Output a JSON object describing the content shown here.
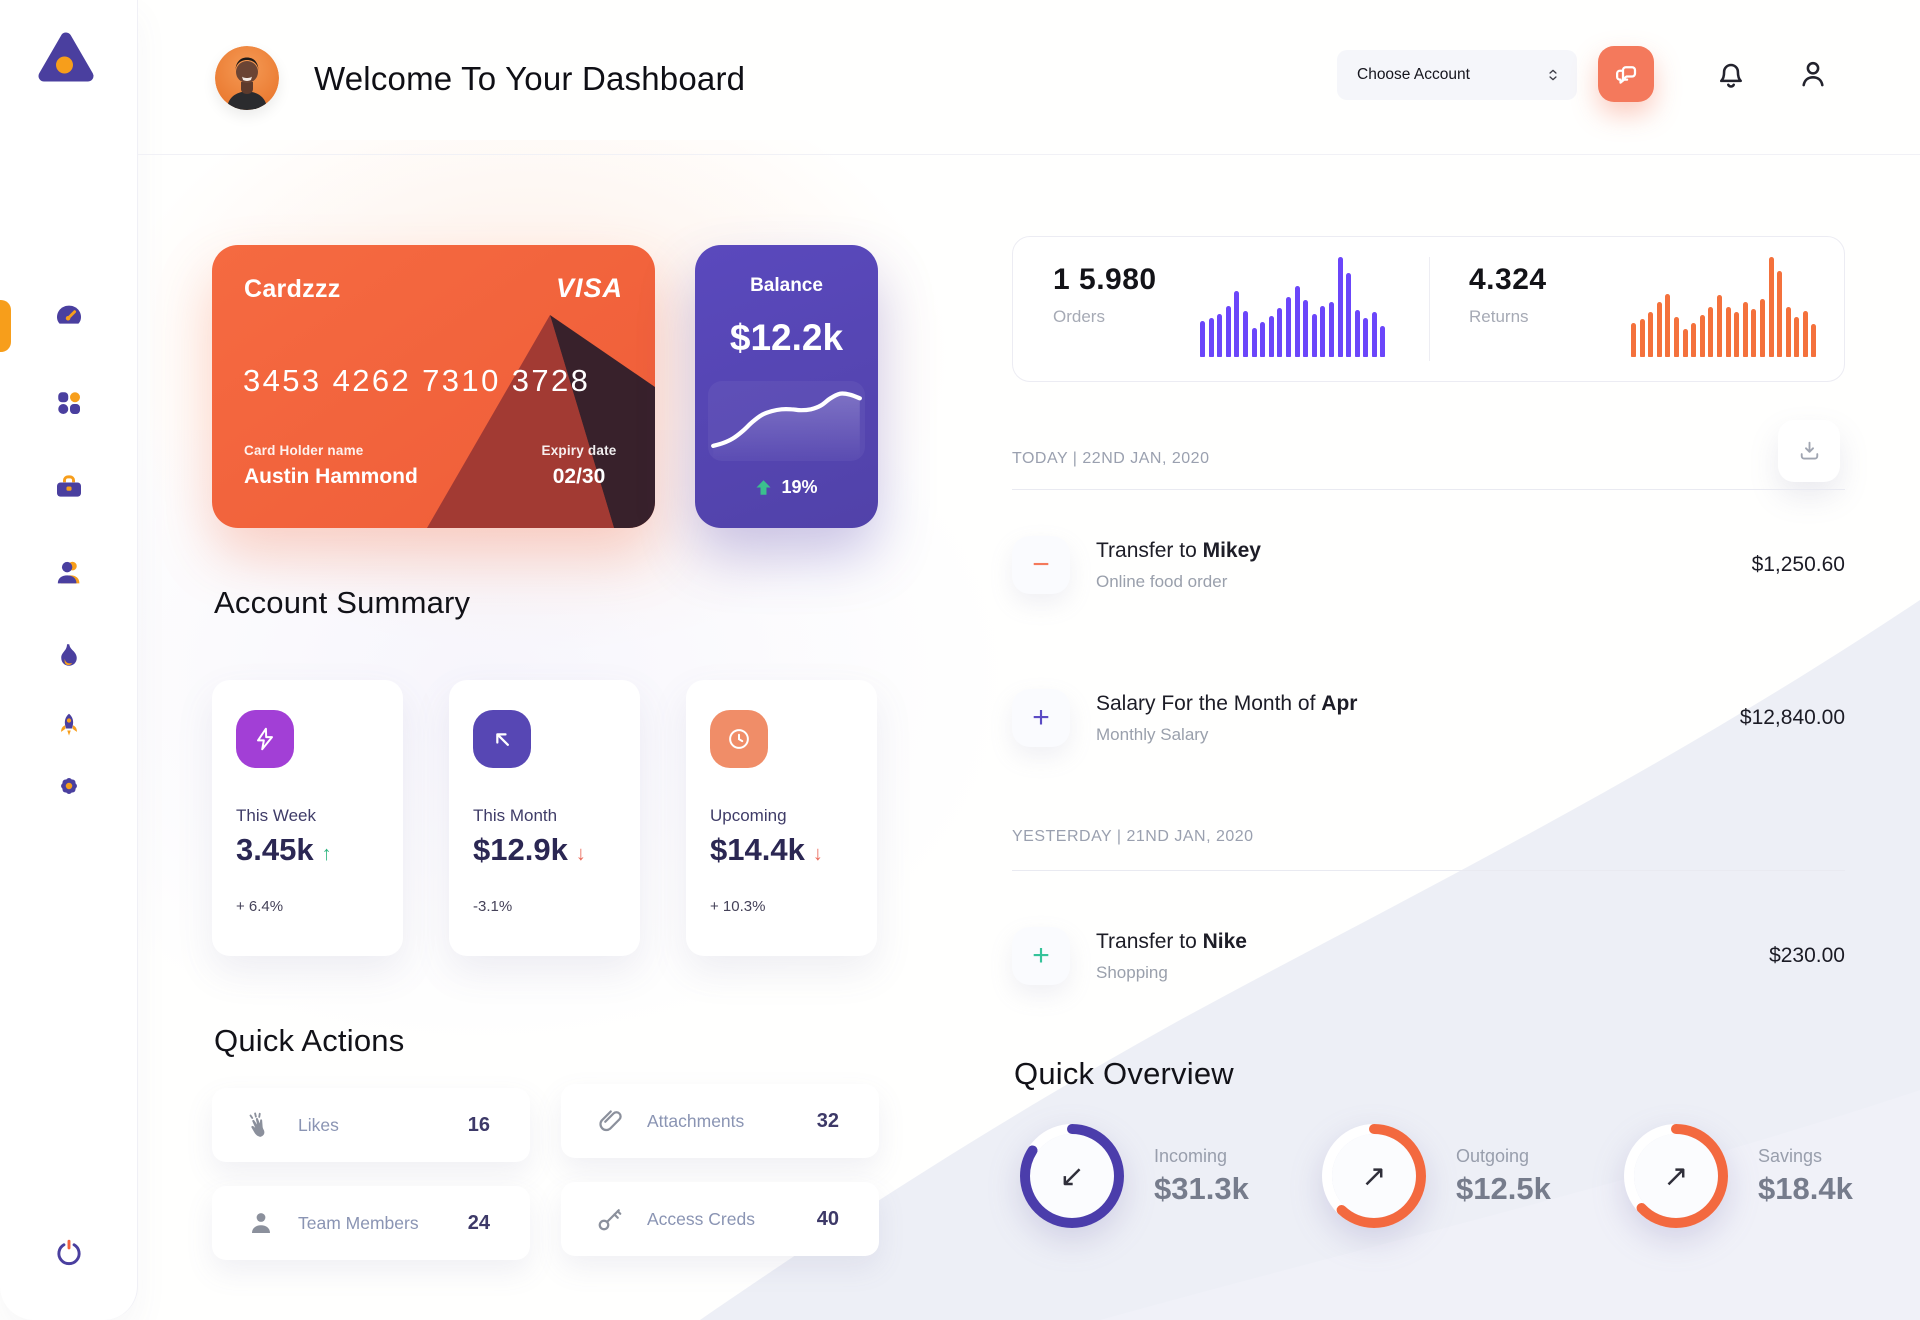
{
  "header": {
    "title": "Welcome To Your Dashboard",
    "account_select_label": "Choose Account"
  },
  "sidebar": {
    "logo_icon": "triangle-logo",
    "nav_icons": [
      "dashboard-gauge",
      "apps-grid",
      "portfolio-briefcase",
      "customers-user",
      "activity-flame",
      "launch-rocket",
      "settings-gear"
    ],
    "logout_icon": "power"
  },
  "credit_card": {
    "name": "Cardzzz",
    "brand": "VISA",
    "number": "3453 4262 7310 3728",
    "holder_label": "Card Holder name",
    "holder": "Austin Hammond",
    "expiry_label": "Expiry date",
    "expiry": "02/30"
  },
  "balance_card": {
    "label": "Balance",
    "value": "$12.2k",
    "change": "19%"
  },
  "account_summary": {
    "title": "Account Summary",
    "items": [
      {
        "label": "This Week",
        "value": "3.45k",
        "arrow": "↑",
        "arrow_color": "#2fb57f",
        "percent": "+ 6.4%",
        "icon": "lightning-icon",
        "icon_bg": "#a23fd6"
      },
      {
        "label": "This Month",
        "value": "$12.9k",
        "arrow": "↓",
        "arrow_color": "#ea6a5a",
        "percent": "-3.1%",
        "icon": "arrow-up-left-icon",
        "icon_bg": "#5747b4"
      },
      {
        "label": "Upcoming",
        "value": "$14.4k",
        "arrow": "↓",
        "arrow_color": "#ea6a5a",
        "percent": "+ 10.3%",
        "icon": "clock-icon",
        "icon_bg": "#f08d68"
      }
    ]
  },
  "quick_actions": {
    "title": "Quick Actions",
    "items": [
      {
        "icon": "clap-icon",
        "label": "Likes",
        "count": "16"
      },
      {
        "icon": "paperclip-icon",
        "label": "Attachments",
        "count": "32"
      },
      {
        "icon": "team-member-icon",
        "label": "Team Members",
        "count": "24"
      },
      {
        "icon": "key-icon",
        "label": "Access Creds",
        "count": "40"
      }
    ]
  },
  "activity": {
    "stats": [
      {
        "value": "1 5.980",
        "label": "Orders"
      },
      {
        "value": "4.324",
        "label": "Returns"
      }
    ],
    "download_icon": "download",
    "groups": [
      {
        "date_label": "TODAY | 22ND JAN, 2020",
        "rows": [
          {
            "sign": "−",
            "sign_color": "#f4795b",
            "title_prefix": "Transfer to ",
            "title_bold": "Mikey",
            "subtitle": "Online food order",
            "amount": "$1,250.60"
          },
          {
            "sign": "+",
            "sign_color": "#5b4bc4",
            "title_prefix": "Salary For the Month of ",
            "title_bold": "Apr",
            "subtitle": "Monthly Salary",
            "amount": "$12,840.00"
          }
        ]
      },
      {
        "date_label": "YESTERDAY | 21ND JAN, 2020",
        "rows": [
          {
            "sign": "+",
            "sign_color": "#35c39a",
            "title_prefix": "Transfer to ",
            "title_bold": "Nike",
            "subtitle": "Shopping",
            "amount": "$230.00"
          }
        ]
      }
    ]
  },
  "quick_overview": {
    "title": "Quick Overview",
    "items": [
      {
        "label": "Incoming",
        "value": "$31.3k",
        "arrow": "↙"
      },
      {
        "label": "Outgoing",
        "value": "$12.5k",
        "arrow": "↗"
      },
      {
        "label": "Savings",
        "value": "$18.4k",
        "arrow": "↗"
      }
    ]
  },
  "chart_data": [
    {
      "type": "bar",
      "title": "Orders mini bar chart",
      "values": [
        36,
        39,
        43,
        51,
        66,
        46,
        29,
        35,
        41,
        49,
        60,
        71,
        57,
        43,
        51,
        55,
        100,
        84,
        47,
        39,
        45,
        31
      ],
      "color": "#6b46fa",
      "ylim": [
        0,
        100
      ],
      "grid": false,
      "legend": "none"
    },
    {
      "type": "bar",
      "title": "Returns mini bar chart",
      "values": [
        34,
        38,
        45,
        55,
        63,
        40,
        28,
        34,
        42,
        50,
        62,
        50,
        45,
        55,
        48,
        58,
        100,
        86,
        50,
        40,
        46,
        33
      ],
      "color": "#f4713c",
      "ylim": [
        0,
        100
      ],
      "grid": false,
      "legend": "none"
    },
    {
      "type": "line",
      "title": "Balance trend",
      "values": [
        10,
        13,
        18,
        26,
        36,
        44,
        48,
        50,
        50,
        49,
        50,
        54,
        62,
        67,
        66,
        62
      ],
      "color": "#ffffff",
      "grid": false,
      "legend": "none"
    },
    {
      "type": "donut",
      "label": "Incoming",
      "value": "$31.3k",
      "percent": 84,
      "color": "#4b3dab"
    },
    {
      "type": "donut",
      "label": "Outgoing",
      "value": "$12.5k",
      "percent": 62,
      "color": "#f3693f"
    },
    {
      "type": "donut",
      "label": "Savings",
      "value": "$18.4k",
      "percent": 63,
      "color": "#f3693f"
    }
  ]
}
